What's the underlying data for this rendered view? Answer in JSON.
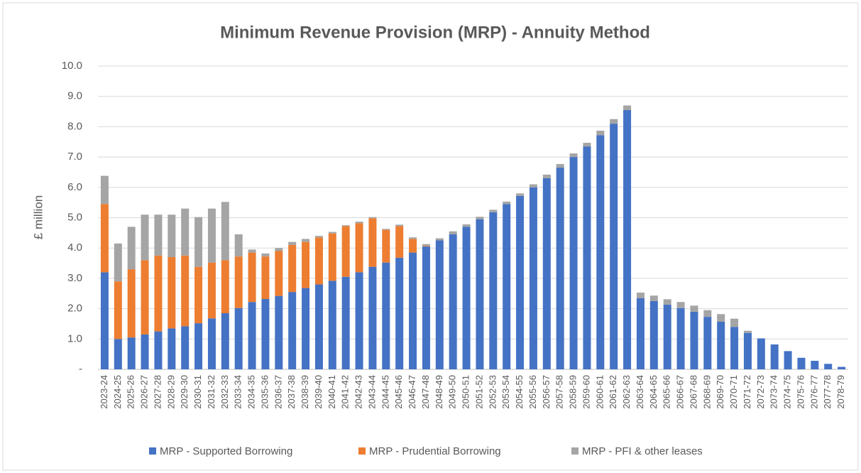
{
  "chart_data": {
    "type": "stacked_bar",
    "title": "Minimum Revenue Provision (MRP)  - Annuity Method",
    "y_label": "£ million",
    "categories": [
      "2023-24",
      "2024-25",
      "2025-26",
      "2026-27",
      "2027-28",
      "2028-29",
      "2029-30",
      "2030-31",
      "2031-32",
      "2032-33",
      "2033-34",
      "2034-35",
      "2035-36",
      "2036-37",
      "2037-38",
      "2038-39",
      "2039-40",
      "2040-41",
      "2041-42",
      "2042-43",
      "2043-44",
      "2044-45",
      "2045-46",
      "2046-47",
      "2047-48",
      "2048-49",
      "2049-50",
      "2050-51",
      "2051-52",
      "2052-53",
      "2053-54",
      "2054-55",
      "2055-56",
      "2056-57",
      "2057-58",
      "2058-59",
      "2059-60",
      "2060-61",
      "2061-62",
      "2062-63",
      "2063-64",
      "2064-65",
      "2065-66",
      "2066-67",
      "2067-68",
      "2068-69",
      "2069-70",
      "2070-71",
      "2071-72",
      "2072-73",
      "2073-74",
      "2074-75",
      "2075-76",
      "2076-77",
      "2077-78",
      "2078-79"
    ],
    "series": [
      {
        "name": "MRP - Supported Borrowing",
        "color": "#4472c4",
        "values": [
          3.2,
          1.0,
          1.05,
          1.15,
          1.25,
          1.35,
          1.42,
          1.52,
          1.68,
          1.85,
          2.02,
          2.22,
          2.32,
          2.42,
          2.55,
          2.68,
          2.8,
          2.92,
          3.05,
          3.2,
          3.38,
          3.52,
          3.68,
          3.85,
          4.05,
          4.25,
          4.45,
          4.7,
          4.95,
          5.18,
          5.45,
          5.72,
          6.0,
          6.3,
          6.65,
          7.0,
          7.35,
          7.72,
          8.1,
          8.55,
          2.35,
          2.25,
          2.13,
          2.02,
          1.9,
          1.73,
          1.57,
          1.4,
          1.2,
          1.02,
          0.82,
          0.6,
          0.38,
          0.28,
          0.18,
          0.08
        ]
      },
      {
        "name": "MRP - Prudential Borrowing",
        "color": "#ed7d31",
        "values": [
          2.25,
          1.9,
          2.25,
          2.45,
          2.5,
          2.35,
          2.33,
          1.86,
          1.84,
          1.75,
          1.7,
          1.63,
          1.4,
          1.48,
          1.55,
          1.52,
          1.55,
          1.56,
          1.67,
          1.62,
          1.6,
          1.08,
          1.04,
          0.45,
          0.02,
          0,
          0,
          0,
          0,
          0,
          0,
          0,
          0,
          0,
          0,
          0,
          0,
          0,
          0,
          0,
          0,
          0,
          0,
          0,
          0,
          0,
          0,
          0,
          0,
          0,
          0,
          0,
          0,
          0,
          0,
          0
        ]
      },
      {
        "name": "MRP - PFI & other leases",
        "color": "#a5a5a5",
        "values": [
          0.93,
          1.25,
          1.4,
          1.5,
          1.35,
          1.4,
          1.55,
          1.64,
          1.78,
          1.92,
          0.73,
          0.1,
          0.1,
          0.1,
          0.1,
          0.1,
          0.05,
          0.05,
          0.03,
          0.05,
          0.04,
          0.03,
          0.05,
          0.05,
          0.06,
          0.07,
          0.1,
          0.08,
          0.08,
          0.08,
          0.08,
          0.08,
          0.1,
          0.12,
          0.12,
          0.12,
          0.12,
          0.15,
          0.15,
          0.15,
          0.18,
          0.18,
          0.18,
          0.2,
          0.2,
          0.22,
          0.25,
          0.27,
          0.07,
          0,
          0,
          0,
          0,
          0,
          0,
          0
        ]
      }
    ],
    "ylim": [
      0,
      10
    ],
    "yticks": [
      {
        "value": 0,
        "label": "-"
      },
      {
        "value": 1,
        "label": "1.0"
      },
      {
        "value": 2,
        "label": "2.0"
      },
      {
        "value": 3,
        "label": "3.0"
      },
      {
        "value": 4,
        "label": "4.0"
      },
      {
        "value": 5,
        "label": "5.0"
      },
      {
        "value": 6,
        "label": "6.0"
      },
      {
        "value": 7,
        "label": "7.0"
      },
      {
        "value": 8,
        "label": "8.0"
      },
      {
        "value": 9,
        "label": "9.0"
      },
      {
        "value": 10,
        "label": "10.0"
      }
    ],
    "grid": true,
    "legend": "bottom"
  }
}
